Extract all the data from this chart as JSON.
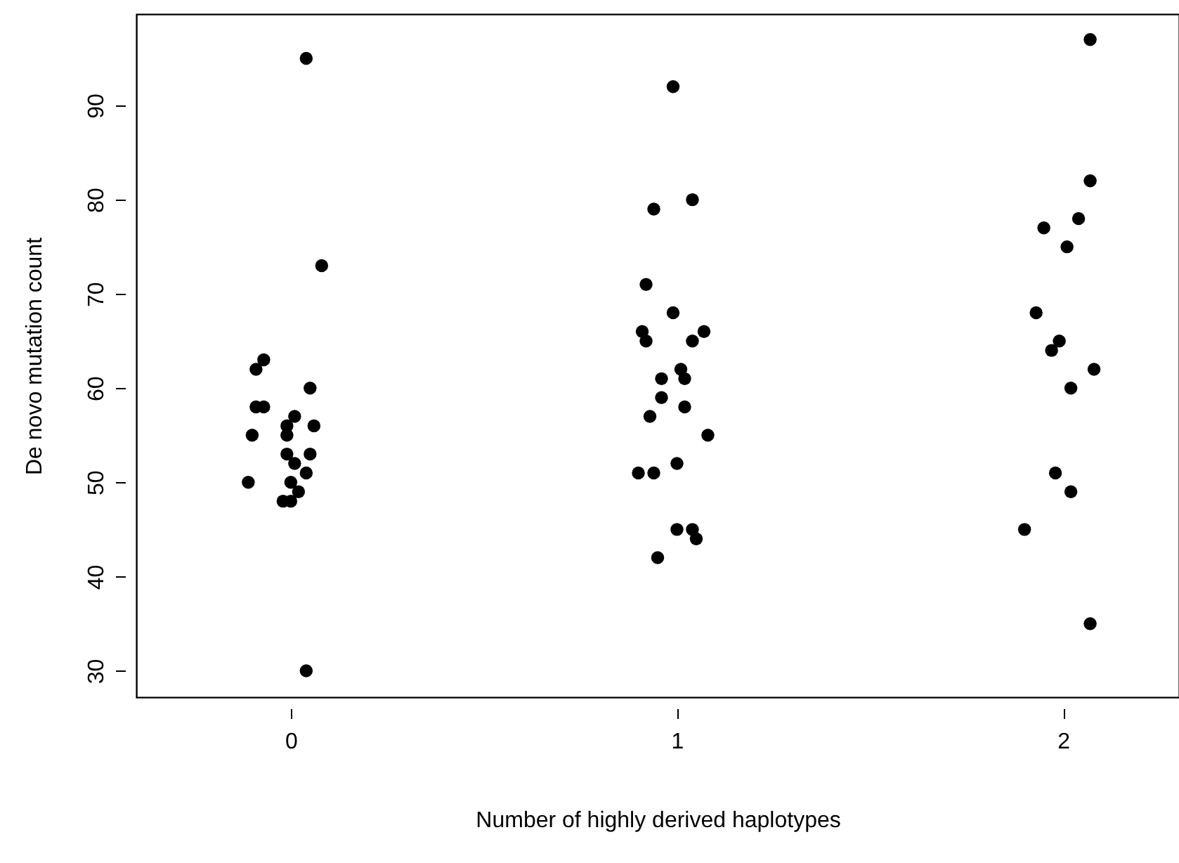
{
  "chart_data": {
    "type": "scatter",
    "xlabel": "Number of highly derived haplotypes",
    "ylabel": "De novo mutation count",
    "x": [
      0.04,
      0.08,
      -0.07,
      -0.09,
      -0.09,
      -0.07,
      0.05,
      -0.1,
      -0.01,
      0.01,
      0.06,
      -0.01,
      -0.01,
      0.05,
      0.01,
      0.04,
      -0.11,
      0.0,
      0.02,
      -0.02,
      0.0,
      0.04,
      0.99,
      0.94,
      1.04,
      0.92,
      0.99,
      0.91,
      0.92,
      1.07,
      1.04,
      1.01,
      0.96,
      1.02,
      0.96,
      1.02,
      0.93,
      1.08,
      1.0,
      0.9,
      0.94,
      1.0,
      1.04,
      1.05,
      0.95,
      2.07,
      2.07,
      2.04,
      1.95,
      2.01,
      1.93,
      1.99,
      1.97,
      2.08,
      2.02,
      1.98,
      2.02,
      1.9,
      2.07
    ],
    "values": [
      95,
      73,
      63,
      62,
      58,
      58,
      60,
      55,
      56,
      57,
      56,
      55,
      53,
      53,
      52,
      51,
      50,
      50,
      49,
      48,
      48,
      30,
      92,
      79,
      80,
      71,
      68,
      66,
      65,
      66,
      65,
      62,
      61,
      61,
      59,
      58,
      57,
      55,
      52,
      51,
      51,
      45,
      45,
      44,
      42,
      97,
      82,
      78,
      77,
      75,
      68,
      65,
      64,
      62,
      60,
      51,
      49,
      45,
      35
    ],
    "color": "#000000",
    "marker": "circle",
    "xlim": [
      -0.4,
      2.3
    ],
    "ylim": [
      27.2,
      99.7
    ],
    "xticks": [
      0,
      1,
      2
    ],
    "yticks": [
      30,
      40,
      50,
      60,
      70,
      80,
      90
    ],
    "grid": false
  }
}
